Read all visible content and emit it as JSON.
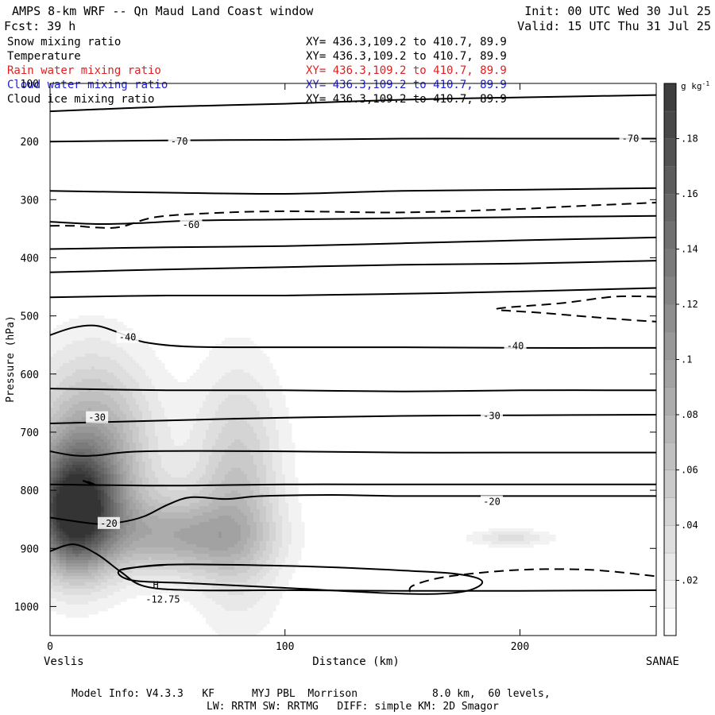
{
  "header": {
    "title": "AMPS 8-km WRF -- Qn Maud Land Coast window",
    "init": "Init: 00 UTC Wed 30 Jul 25",
    "fcst": "Fcst:   39 h",
    "valid": "Valid: 15 UTC Thu 31 Jul 25"
  },
  "fields": [
    {
      "name": "Snow mixing ratio",
      "xy": "XY= 436.3,109.2 to 410.7, 89.9",
      "color": "#000000"
    },
    {
      "name": "Temperature",
      "xy": "XY= 436.3,109.2 to 410.7, 89.9",
      "color": "#000000"
    },
    {
      "name": "Rain water mixing ratio",
      "xy": "XY= 436.3,109.2 to 410.7, 89.9",
      "color": "#e02020"
    },
    {
      "name": "Cloud water mixing ratio",
      "xy": "XY= 436.3,109.2 to 410.7, 89.9",
      "color": "#2020d0"
    },
    {
      "name": "Cloud ice mixing ratio",
      "xy": "XY= 436.3,109.2 to 410.7, 89.9",
      "color": "#000000"
    }
  ],
  "footer": {
    "line1": "Model Info: V4.3.3   KF      MYJ PBL  Morrison            8.0 km,  60 levels,",
    "line2": "LW: RRTM SW: RRTMG   DIFF: simple KM: 2D Smagor"
  },
  "chart_data": {
    "type": "contour",
    "xlabel": "Distance (km)",
    "ylabel": "Pressure (hPa)",
    "x_start_label": "Veslis",
    "x_end_label": "SANAE",
    "xlim": [
      0,
      258
    ],
    "ylim": [
      1050,
      100
    ],
    "xticks": [
      0,
      100,
      200
    ],
    "yticks": [
      100,
      200,
      300,
      400,
      500,
      600,
      700,
      800,
      900,
      1000
    ],
    "colorbar": {
      "unit": "g kg",
      "unit_exp": "-1",
      "levels": [
        0,
        0.01,
        0.02,
        0.03,
        0.04,
        0.05,
        0.06,
        0.07,
        0.08,
        0.09,
        0.1,
        0.11,
        0.12,
        0.13,
        0.14,
        0.15,
        0.16,
        0.17,
        0.18,
        0.19,
        0.2
      ],
      "tick_labels": [
        ".02",
        ".04",
        ".06",
        ".08",
        ".1",
        ".12",
        ".14",
        ".16",
        ".18"
      ],
      "tick_values": [
        0.02,
        0.04,
        0.06,
        0.08,
        0.1,
        0.12,
        0.14,
        0.16,
        0.18
      ]
    },
    "snow_blobs": [
      {
        "x": 10,
        "p": 838,
        "sx": 12,
        "sp": 70,
        "amp": 0.19
      },
      {
        "x": 18,
        "p": 730,
        "sx": 18,
        "sp": 110,
        "amp": 0.09
      },
      {
        "x": 48,
        "p": 868,
        "sx": 22,
        "sp": 50,
        "amp": 0.05
      },
      {
        "x": 80,
        "p": 800,
        "sx": 13,
        "sp": 140,
        "amp": 0.06
      },
      {
        "x": 62,
        "p": 890,
        "sx": 22,
        "sp": 40,
        "amp": 0.035
      },
      {
        "x": 196,
        "p": 882,
        "sx": 12,
        "sp": 10,
        "amp": 0.035
      }
    ],
    "temperature_labels": [
      {
        "text": "-70",
        "x": 55,
        "p": 200
      },
      {
        "x": 247,
        "p": 195,
        "text": "-70"
      },
      {
        "text": "-60",
        "x": 60,
        "p": 343
      },
      {
        "text": "-40",
        "x": 33,
        "p": 537
      },
      {
        "text": "-40",
        "x": 198,
        "p": 552
      },
      {
        "text": "-30",
        "x": 20,
        "p": 675
      },
      {
        "text": "-30",
        "x": 188,
        "p": 672
      },
      {
        "text": "-20",
        "x": 25,
        "p": 857
      },
      {
        "text": "-20",
        "x": 188,
        "p": 820
      },
      {
        "text": "-12.75",
        "x": 48,
        "p": 988
      }
    ],
    "extremum_label": {
      "text": "H",
      "x": 45,
      "p": 969
    },
    "temperature_isotherms": [
      [
        [
          0,
          148
        ],
        [
          50,
          140
        ],
        [
          100,
          135
        ],
        [
          150,
          128
        ],
        [
          200,
          124
        ],
        [
          258,
          120
        ]
      ],
      [
        [
          0,
          200
        ],
        [
          50,
          198
        ],
        [
          100,
          197
        ],
        [
          150,
          195
        ],
        [
          200,
          195
        ],
        [
          258,
          195
        ]
      ],
      [
        [
          0,
          285
        ],
        [
          50,
          288
        ],
        [
          100,
          290
        ],
        [
          150,
          285
        ],
        [
          200,
          283
        ],
        [
          258,
          280
        ]
      ],
      [
        [
          0,
          338
        ],
        [
          20,
          342
        ],
        [
          40,
          340
        ],
        [
          60,
          336
        ],
        [
          100,
          334
        ],
        [
          150,
          332
        ],
        [
          200,
          330
        ],
        [
          258,
          328
        ]
      ],
      [
        [
          0,
          385
        ],
        [
          50,
          382
        ],
        [
          100,
          380
        ],
        [
          150,
          375
        ],
        [
          200,
          370
        ],
        [
          258,
          365
        ]
      ],
      [
        [
          0,
          425
        ],
        [
          50,
          420
        ],
        [
          100,
          416
        ],
        [
          150,
          412
        ],
        [
          200,
          410
        ],
        [
          258,
          405
        ]
      ],
      [
        [
          0,
          468
        ],
        [
          50,
          465
        ],
        [
          100,
          465
        ],
        [
          150,
          462
        ],
        [
          200,
          458
        ],
        [
          258,
          452
        ]
      ],
      [
        [
          0,
          533
        ],
        [
          10,
          520
        ],
        [
          20,
          517
        ],
        [
          30,
          530
        ],
        [
          40,
          545
        ],
        [
          60,
          553
        ],
        [
          100,
          554
        ],
        [
          150,
          554
        ],
        [
          200,
          555
        ],
        [
          258,
          555
        ]
      ],
      [
        [
          0,
          625
        ],
        [
          50,
          628
        ],
        [
          100,
          628
        ],
        [
          150,
          630
        ],
        [
          200,
          628
        ],
        [
          258,
          628
        ]
      ],
      [
        [
          0,
          685
        ],
        [
          50,
          680
        ],
        [
          100,
          675
        ],
        [
          150,
          672
        ],
        [
          200,
          671
        ],
        [
          258,
          670
        ]
      ],
      [
        [
          0,
          733
        ],
        [
          10,
          740
        ],
        [
          20,
          740
        ],
        [
          40,
          733
        ],
        [
          100,
          733
        ],
        [
          150,
          735
        ],
        [
          200,
          735
        ],
        [
          258,
          735
        ]
      ],
      [
        [
          0,
          790
        ],
        [
          50,
          792
        ],
        [
          100,
          790
        ],
        [
          150,
          790
        ],
        [
          200,
          790
        ],
        [
          258,
          790
        ]
      ],
      [
        [
          0,
          847
        ],
        [
          20,
          858
        ],
        [
          30,
          855
        ],
        [
          40,
          845
        ],
        [
          50,
          825
        ],
        [
          60,
          812
        ],
        [
          75,
          815
        ],
        [
          90,
          810
        ],
        [
          120,
          808
        ],
        [
          150,
          810
        ],
        [
          200,
          810
        ],
        [
          258,
          810
        ]
      ],
      [
        [
          0,
          905
        ],
        [
          10,
          893
        ],
        [
          20,
          910
        ],
        [
          30,
          940
        ],
        [
          40,
          965
        ],
        [
          60,
          972
        ],
        [
          100,
          972
        ],
        [
          150,
          973
        ],
        [
          200,
          973
        ],
        [
          258,
          972
        ]
      ]
    ],
    "closed_isotherm": [
      [
        30,
        937
      ],
      [
        50,
        928
      ],
      [
        100,
        930
      ],
      [
        150,
        938
      ],
      [
        175,
        945
      ],
      [
        184,
        958
      ],
      [
        175,
        975
      ],
      [
        150,
        978
      ],
      [
        100,
        968
      ],
      [
        60,
        960
      ],
      [
        35,
        955
      ]
    ],
    "dashed_contours": [
      [
        [
          0,
          345
        ],
        [
          10,
          345
        ],
        [
          20,
          348
        ],
        [
          30,
          347
        ],
        [
          45,
          330
        ],
        [
          70,
          323
        ],
        [
          100,
          320
        ],
        [
          150,
          322
        ],
        [
          200,
          316
        ],
        [
          215,
          313
        ],
        [
          230,
          310
        ],
        [
          258,
          305
        ]
      ],
      [
        [
          258,
          467
        ],
        [
          240,
          467
        ],
        [
          218,
          478
        ],
        [
          190,
          488
        ],
        [
          210,
          495
        ],
        [
          240,
          505
        ],
        [
          258,
          510
        ]
      ],
      [
        [
          16,
          785
        ],
        [
          20,
          792
        ],
        [
          13,
          782
        ],
        [
          18,
          790
        ]
      ],
      [
        [
          153,
          975
        ],
        [
          155,
          963
        ],
        [
          170,
          948
        ],
        [
          200,
          937
        ],
        [
          230,
          937
        ],
        [
          258,
          948
        ]
      ]
    ]
  }
}
